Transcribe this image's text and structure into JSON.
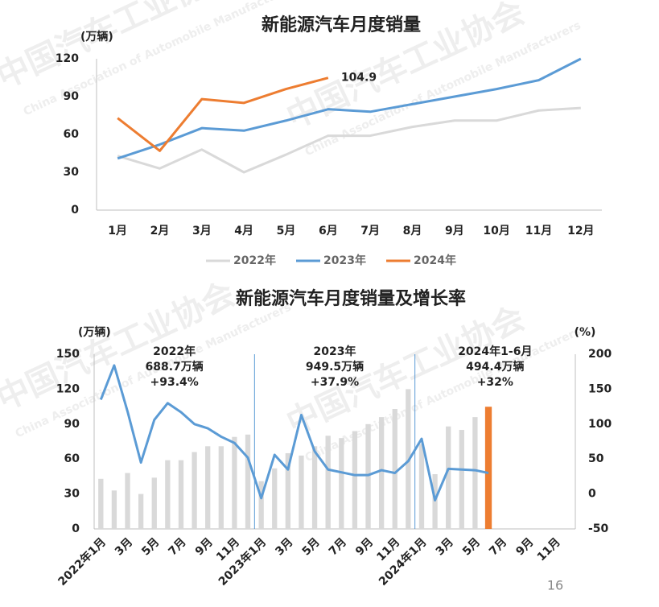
{
  "watermark": {
    "cn": "中国汽车工业协会",
    "en": "China Association of Automobile Manufacturers"
  },
  "page_number": "16",
  "chart_data": [
    {
      "type": "line",
      "title": "新能源汽车月度销量",
      "y_label": "(万辆)",
      "categories": [
        "1月",
        "2月",
        "3月",
        "4月",
        "5月",
        "6月",
        "7月",
        "8月",
        "9月",
        "10月",
        "11月",
        "12月"
      ],
      "ylim": [
        0,
        120
      ],
      "yticks": [
        0,
        30,
        60,
        90,
        120
      ],
      "legend": "bottom",
      "series": [
        {
          "name": "2022年",
          "color": "#d9d9d9",
          "values": [
            43,
            33,
            48,
            30,
            44,
            59,
            59,
            66,
            71,
            71,
            79,
            81
          ]
        },
        {
          "name": "2023年",
          "color": "#5b9bd5",
          "values": [
            41,
            52,
            65,
            63,
            71,
            80,
            78,
            84,
            90,
            96,
            103,
            120
          ]
        },
        {
          "name": "2024年",
          "color": "#ed7d31",
          "values": [
            73,
            47,
            88,
            85,
            96,
            104.9,
            null,
            null,
            null,
            null,
            null,
            null
          ],
          "value_labels": [
            null,
            null,
            null,
            null,
            null,
            "104.9",
            null,
            null,
            null,
            null,
            null,
            null
          ]
        }
      ]
    },
    {
      "type": "bar_line",
      "title": "新能源汽车月度销量及增长率",
      "y_label": "(万辆)",
      "y2_label": "(%)",
      "categories": [
        "2022年1月",
        null,
        "3月",
        null,
        "5月",
        null,
        "7月",
        null,
        "9月",
        null,
        "11月",
        null,
        "2023年1月",
        null,
        "3月",
        null,
        "5月",
        null,
        "7月",
        null,
        "9月",
        null,
        "11月",
        null,
        "2024年1月",
        null,
        "3月",
        null,
        "5月",
        null,
        "7月",
        null,
        "9月",
        null,
        "11月",
        null
      ],
      "ylim": [
        0,
        150
      ],
      "yticks": [
        0,
        30,
        60,
        90,
        120,
        150
      ],
      "y2lim": [
        -50,
        200
      ],
      "y2ticks": [
        -50,
        0,
        50,
        100,
        150,
        200
      ],
      "series": [
        {
          "type": "bar",
          "values": [
            43,
            33,
            48,
            30,
            44,
            59,
            59,
            66,
            71,
            71,
            79,
            81,
            41,
            52,
            65,
            63,
            71,
            80,
            78,
            84,
            90,
            96,
            103,
            120,
            73,
            47,
            88,
            85,
            96,
            104.9,
            null,
            null,
            null,
            null,
            null,
            null
          ],
          "colors": [
            "#d9d9d9",
            "#d9d9d9",
            "#d9d9d9",
            "#d9d9d9",
            "#d9d9d9",
            "#d9d9d9",
            "#d9d9d9",
            "#d9d9d9",
            "#d9d9d9",
            "#d9d9d9",
            "#d9d9d9",
            "#d9d9d9",
            "#d9d9d9",
            "#d9d9d9",
            "#d9d9d9",
            "#d9d9d9",
            "#d9d9d9",
            "#d9d9d9",
            "#d9d9d9",
            "#d9d9d9",
            "#d9d9d9",
            "#d9d9d9",
            "#d9d9d9",
            "#d9d9d9",
            "#d9d9d9",
            "#d9d9d9",
            "#d9d9d9",
            "#d9d9d9",
            "#d9d9d9",
            "#ed7d31",
            null,
            null,
            null,
            null,
            null,
            null
          ]
        },
        {
          "type": "line",
          "axis": "y2",
          "color": "#5b9bd5",
          "values": [
            135,
            184,
            118,
            45,
            106,
            130,
            117,
            100,
            94,
            82,
            73,
            52,
            -6,
            56,
            35,
            113,
            61,
            35,
            31,
            27,
            27,
            34,
            30,
            47,
            79,
            -9,
            36,
            35,
            34,
            30,
            null,
            null,
            null,
            null,
            null,
            null
          ]
        }
      ],
      "annotations": [
        {
          "lines": [
            "2022年",
            "688.7万辆",
            "+93.4%"
          ]
        },
        {
          "lines": [
            "2023年",
            "949.5万辆",
            "+37.9%"
          ]
        },
        {
          "lines": [
            "2024年1-6月",
            "494.4万辆",
            "+32%"
          ]
        }
      ]
    }
  ]
}
